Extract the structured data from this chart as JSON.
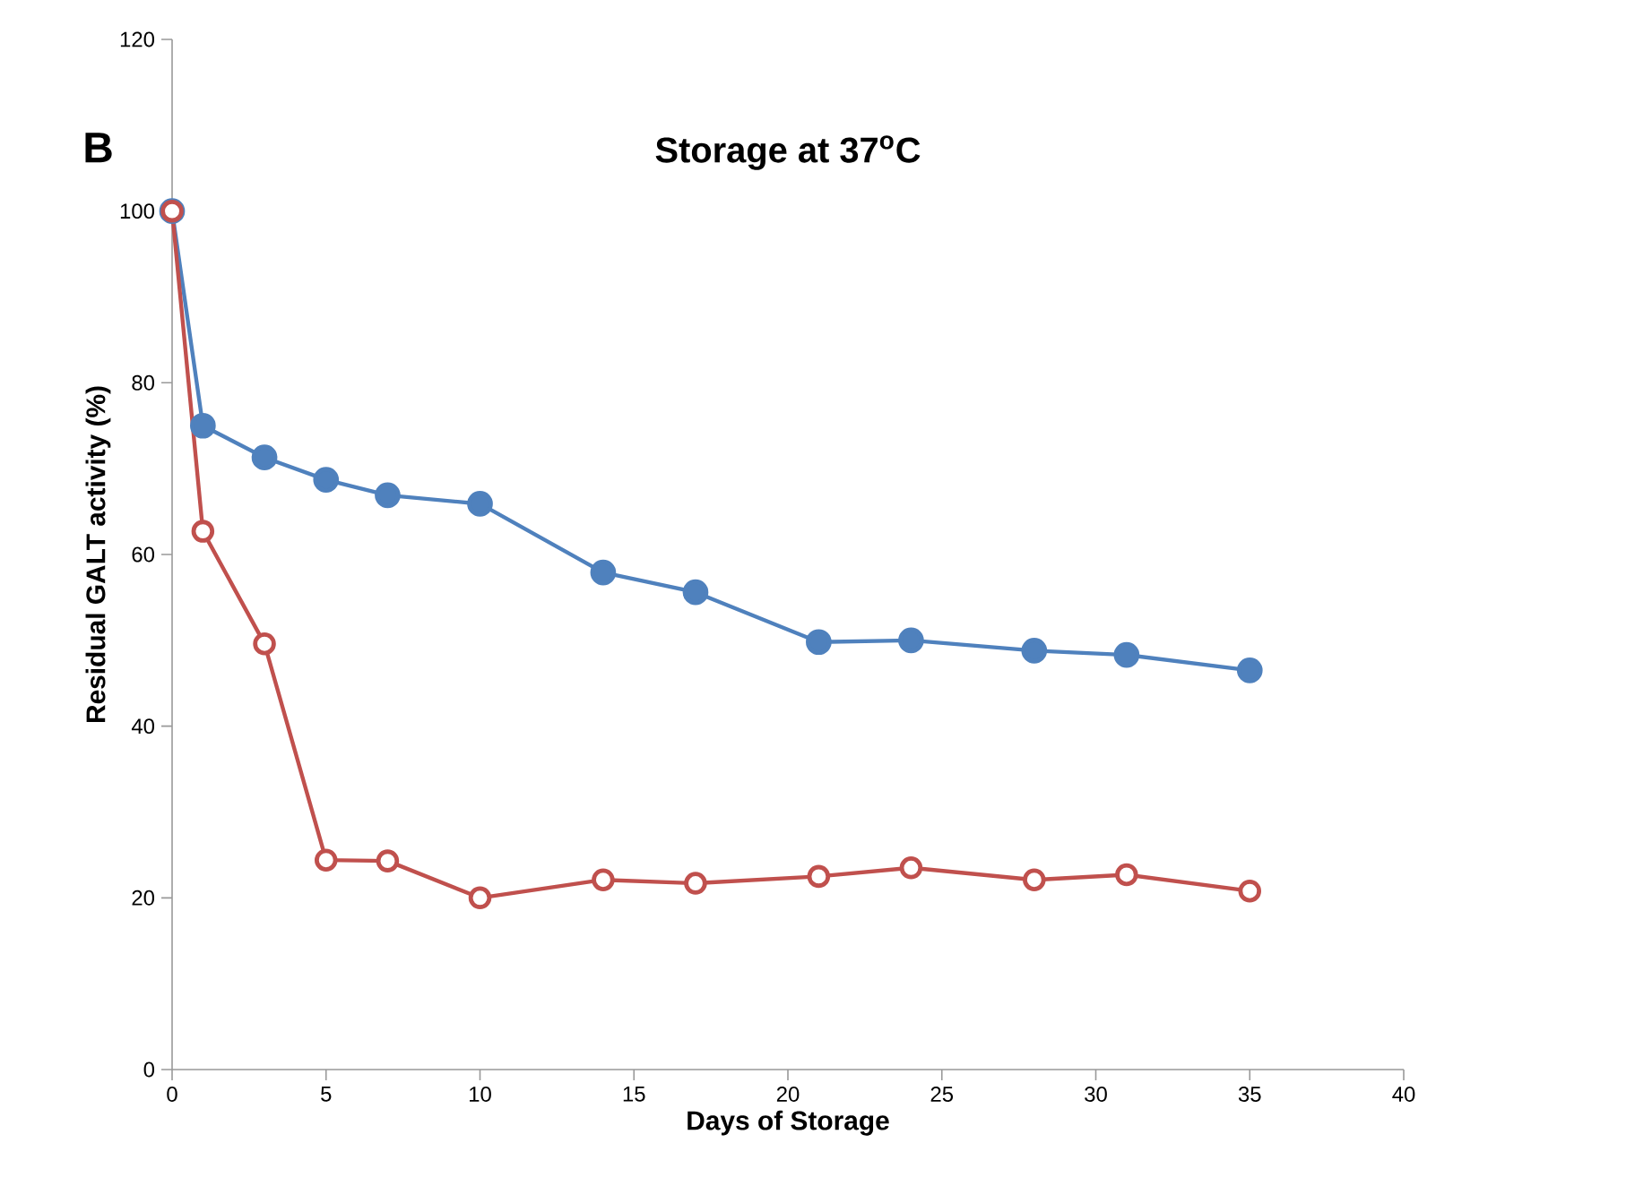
{
  "chart_data": {
    "type": "line",
    "title": "Storage at 37$^{o}$C",
    "xlabel": "Days of Storage",
    "ylabel": "Residual GALT activity (%)",
    "annotations": [
      "B"
    ],
    "x": [
      0,
      1,
      3,
      5,
      7,
      10,
      14,
      17,
      21,
      24,
      28,
      31,
      35
    ],
    "series": [
      {
        "color": "#4f81bd",
        "values": [
          100,
          75,
          71.3,
          68.7,
          66.9,
          65.9,
          57.9,
          55.6,
          49.8,
          50,
          48.8,
          48.3,
          46.5
        ]
      },
      {
        "color": "#c0504d",
        "values": [
          100,
          62.7,
          49.6,
          24.4,
          24.3,
          20,
          22.1,
          21.7,
          22.5,
          23.5,
          22.1,
          22.7,
          20.8
        ]
      }
    ],
    "xlim": [
      0,
      40
    ],
    "xticks": [
      0,
      5,
      10,
      15,
      20,
      25,
      30,
      35,
      40
    ],
    "ylim": [
      0,
      120
    ],
    "yticks": [
      0,
      20,
      40,
      60,
      80,
      100,
      120
    ],
    "grid": false,
    "marker": "circle",
    "line_style": "solid"
  }
}
